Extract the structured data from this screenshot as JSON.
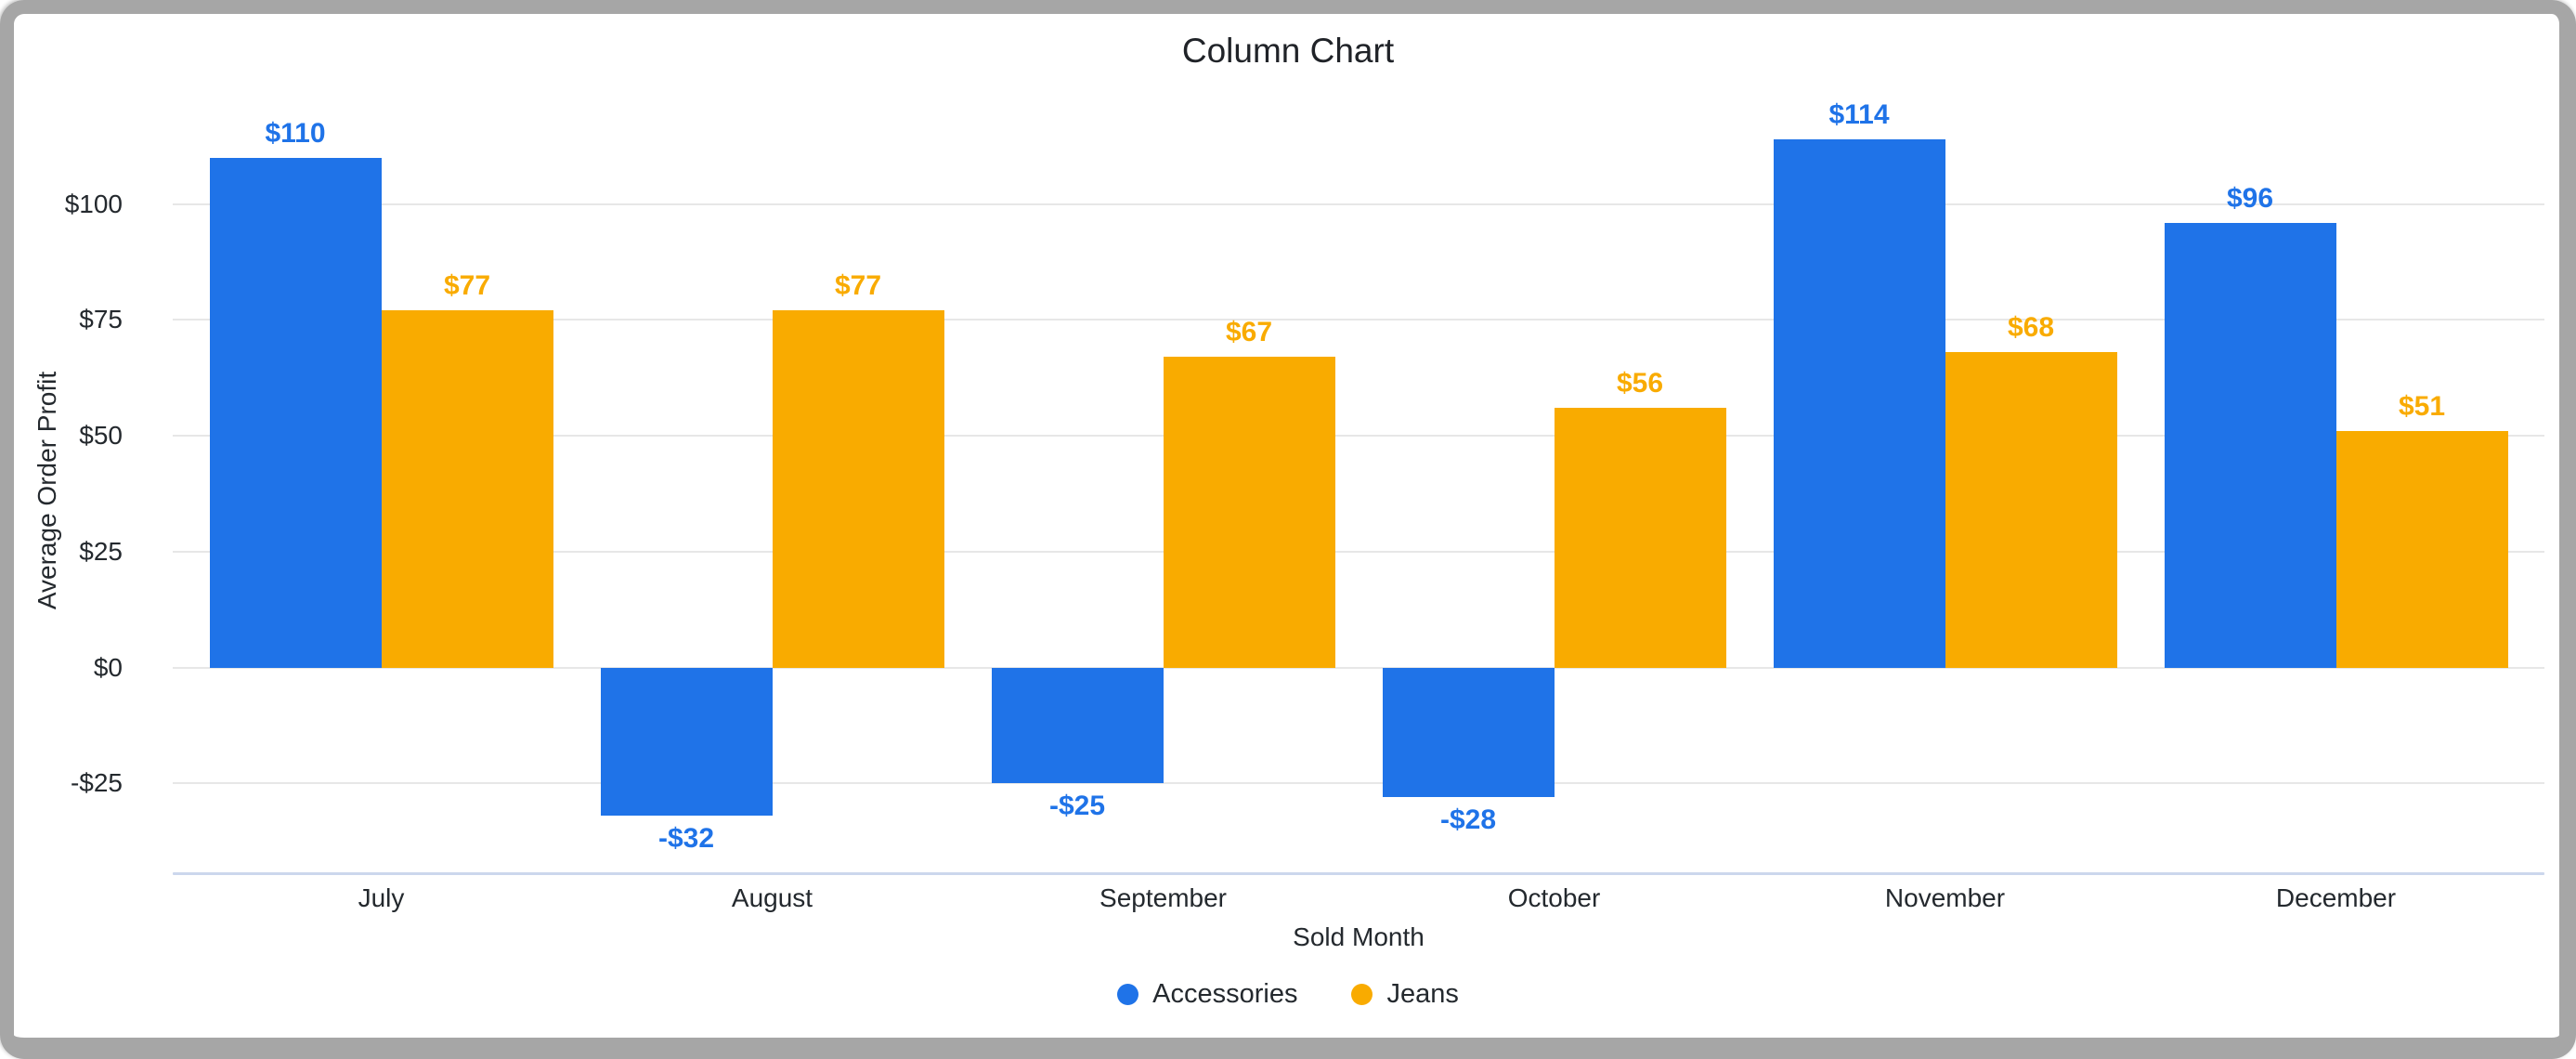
{
  "chart_data": {
    "type": "bar",
    "title": "Column Chart",
    "xlabel": "Sold Month",
    "ylabel": "Average Order Profit",
    "categories": [
      "July",
      "August",
      "September",
      "October",
      "November",
      "December"
    ],
    "series": [
      {
        "name": "Accessories",
        "color": "#1f73e8",
        "values": [
          110,
          -32,
          -25,
          -28,
          114,
          96
        ],
        "labels": [
          "$110",
          "-$32",
          "-$25",
          "-$28",
          "$114",
          "$96"
        ]
      },
      {
        "name": "Jeans",
        "color": "#f9ab00",
        "values": [
          77,
          77,
          67,
          56,
          68,
          51
        ],
        "labels": [
          "$77",
          "$77",
          "$67",
          "$56",
          "$68",
          "$51"
        ]
      }
    ],
    "y_ticks": [
      {
        "value": 100,
        "label": "$100"
      },
      {
        "value": 75,
        "label": "$75"
      },
      {
        "value": 50,
        "label": "$50"
      },
      {
        "value": 25,
        "label": "$25"
      },
      {
        "value": 0,
        "label": "$0"
      },
      {
        "value": -25,
        "label": "-$25"
      }
    ],
    "ylim": [
      -44.6,
      122
    ],
    "grid": true,
    "legend_position": "bottom"
  },
  "colors": {
    "grid": "#e7e7e7",
    "axis_line": "#ccd7ed",
    "text": "#24292e",
    "title_text": "#202328",
    "frame": "#a6a6a6",
    "background": "#ffffff"
  }
}
